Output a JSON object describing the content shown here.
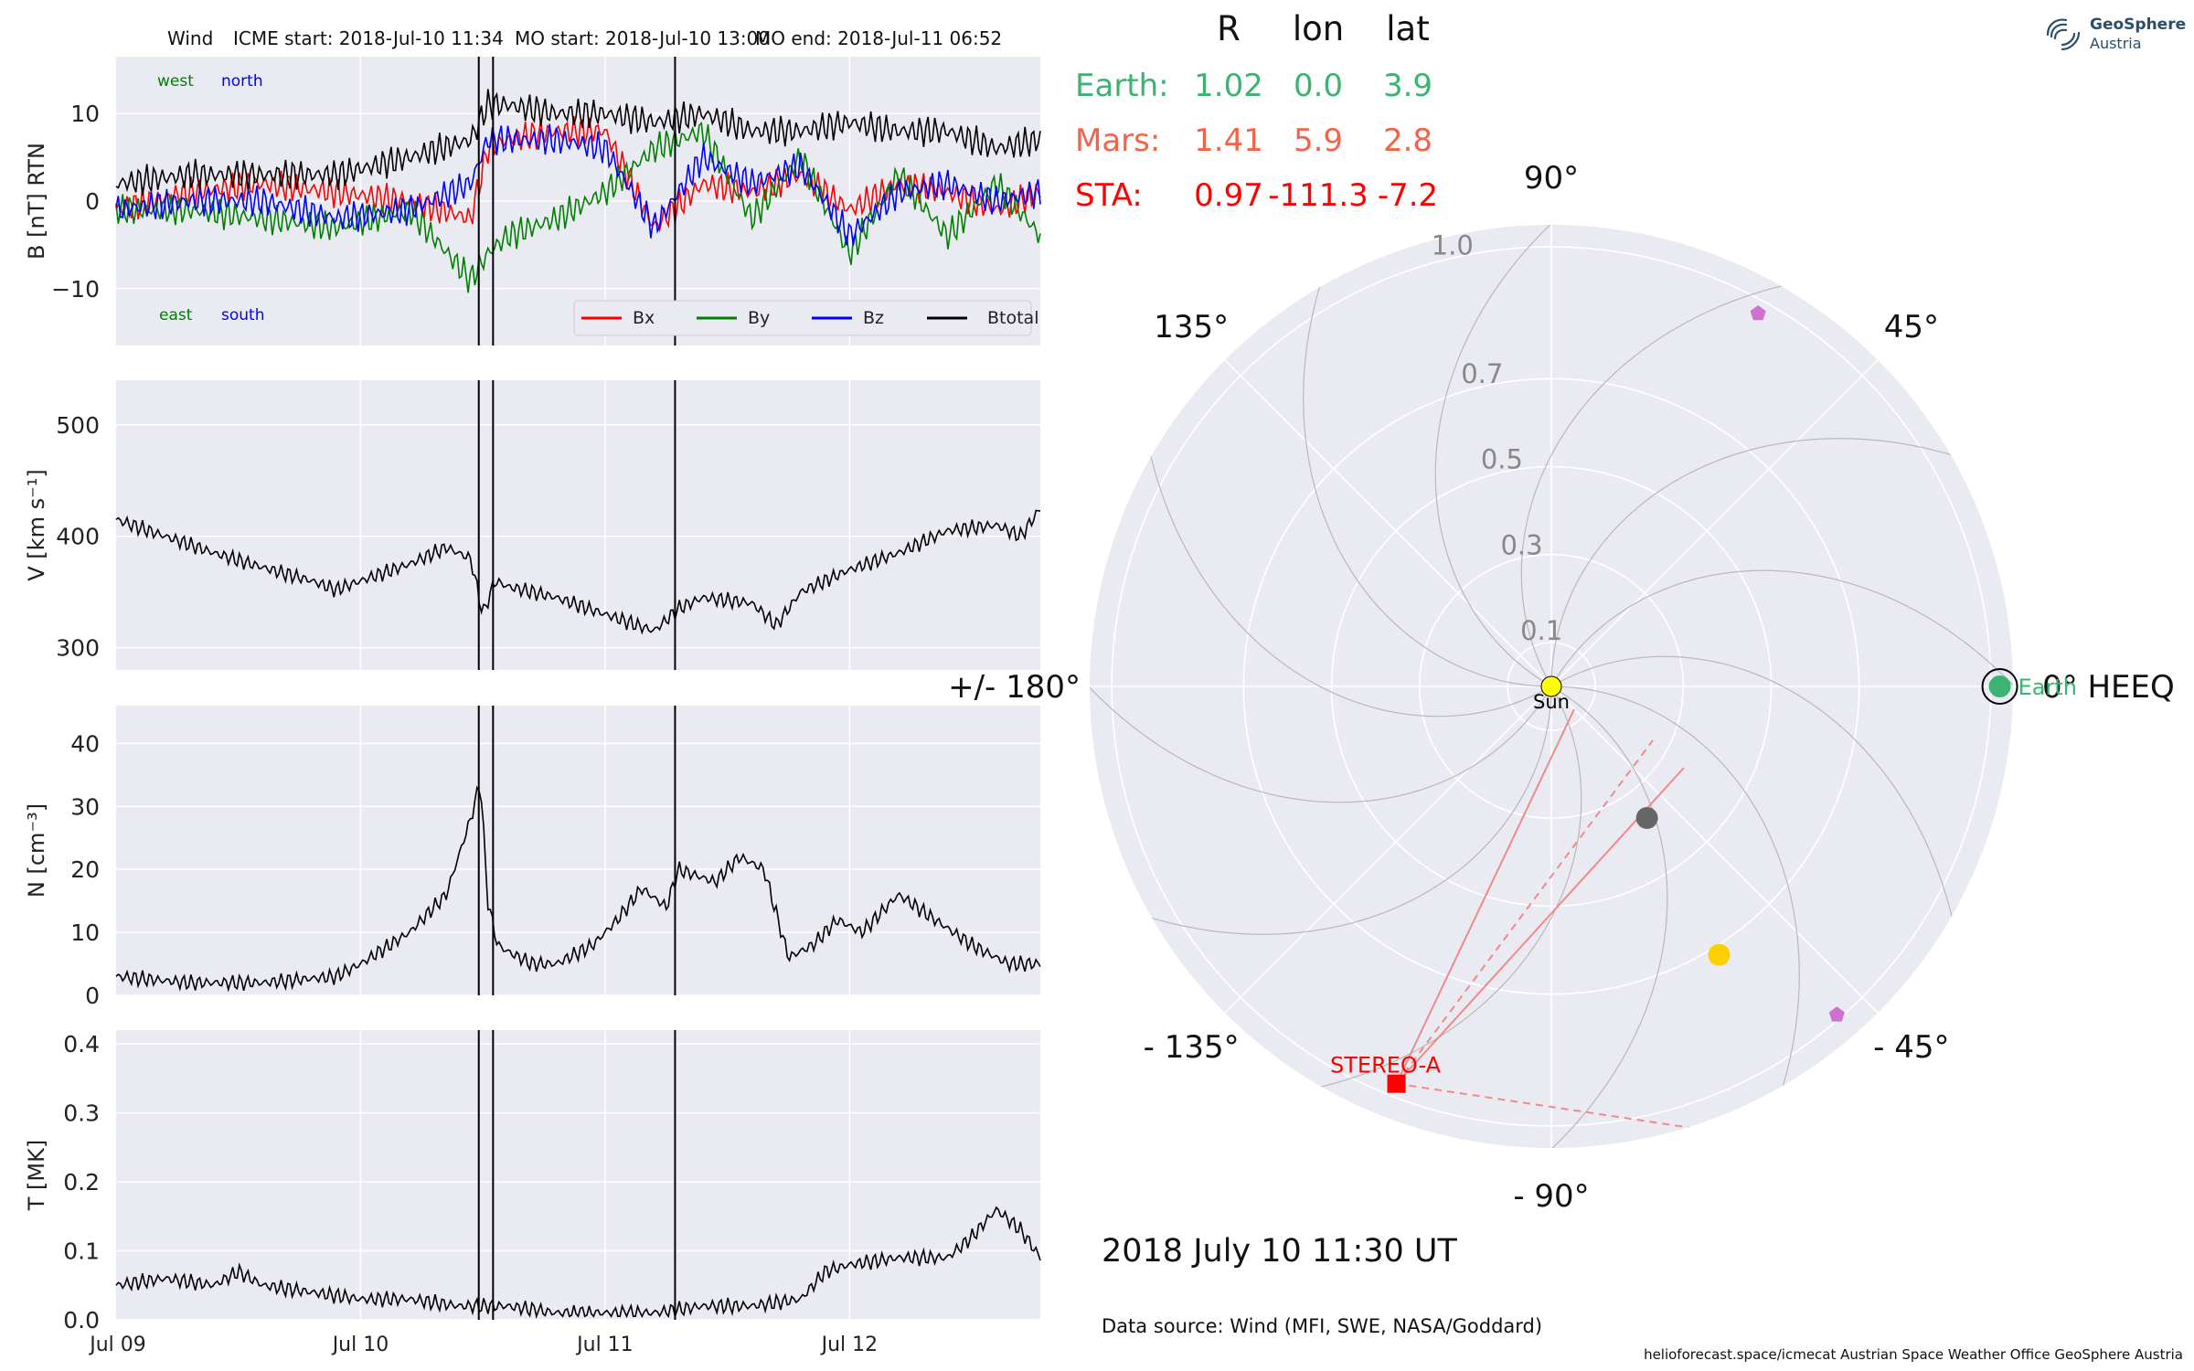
{
  "header": {
    "spacecraft": "Wind",
    "icme_start": "ICME start: 2018-Jul-10 11:34",
    "mo_start": "MO start: 2018-Jul-10 13:00",
    "mo_end": "MO end: 2018-Jul-11 06:52"
  },
  "position_table": {
    "columns": [
      "R",
      "lon",
      "lat"
    ],
    "rows": [
      {
        "name": "Earth:",
        "R": "1.02",
        "lon": "0.0",
        "lat": "3.9",
        "color": "#3cb371"
      },
      {
        "name": "Mars:",
        "R": "1.41",
        "lon": "5.9",
        "lat": "2.8",
        "color": "#f4624a"
      },
      {
        "name": "STA:",
        "R": "0.97",
        "lon": "-111.3",
        "lat": "-7.2",
        "color": "#ff0000"
      }
    ]
  },
  "date_label": "2018 July 10  11:30 UT",
  "data_source": "Data source: Wind (MFI, SWE, NASA/Goddard)",
  "footer": "helioforecast.space/icmecat   Austrian Space Weather Office   GeoSphere Austria",
  "logo": {
    "line1": "GeoSphere",
    "line2": "Austria"
  },
  "colors": {
    "panel_bg": "#eaeaf2",
    "grid": "#ffffff",
    "bx": "#ff0000",
    "by": "#008000",
    "bz": "#0000ff",
    "btotal": "#000000"
  },
  "chart_data": [
    {
      "type": "line",
      "name": "magnetic-field",
      "ylabel": "B [nT] RTN",
      "ylim": [
        -16.5,
        16.5
      ],
      "yticks": [
        10,
        0,
        -10
      ],
      "ytick_labels": [
        "10",
        "0",
        "−10"
      ],
      "xlim": [
        0,
        3.78
      ],
      "corner_labels": {
        "top_left": "west",
        "top_right": "north",
        "bottom_left": "east",
        "bottom_right": "south"
      },
      "legend": [
        "Bx",
        "By",
        "Bz",
        "Btotal"
      ],
      "legend_placement": "lower-right",
      "series": [
        {
          "name": "Bx",
          "x": [
            0,
            0.3,
            0.6,
            0.9,
            1.2,
            1.45,
            1.52,
            1.6,
            1.8,
            2.0,
            2.2,
            2.4,
            2.6,
            2.8,
            3.0,
            3.2,
            3.4,
            3.6,
            3.78
          ],
          "y": [
            -1,
            1,
            2,
            1,
            0,
            -2,
            6,
            7,
            8,
            8,
            -3,
            2,
            1,
            3,
            -1,
            2,
            1,
            -1,
            1
          ]
        },
        {
          "name": "By",
          "x": [
            0,
            0.3,
            0.6,
            0.9,
            1.2,
            1.45,
            1.52,
            1.6,
            1.8,
            2.0,
            2.2,
            2.4,
            2.6,
            2.8,
            3.0,
            3.2,
            3.4,
            3.6,
            3.78
          ],
          "y": [
            -1,
            -1,
            -2,
            -3,
            -1,
            -9,
            -6,
            -4,
            -2,
            1,
            6,
            8,
            -2,
            5,
            -6,
            3,
            -4,
            2,
            -4
          ]
        },
        {
          "name": "Bz",
          "x": [
            0,
            0.3,
            0.6,
            0.9,
            1.2,
            1.45,
            1.52,
            1.6,
            1.8,
            2.0,
            2.2,
            2.4,
            2.6,
            2.8,
            3.0,
            3.2,
            3.4,
            3.6,
            3.78
          ],
          "y": [
            -1,
            0,
            0,
            -2,
            -1,
            2,
            7,
            7,
            7,
            6,
            -3,
            5,
            2,
            4,
            -4,
            1,
            2,
            0,
            1
          ]
        },
        {
          "name": "Btotal",
          "x": [
            0,
            0.3,
            0.6,
            0.9,
            1.2,
            1.45,
            1.52,
            1.6,
            1.8,
            2.0,
            2.2,
            2.4,
            2.6,
            2.8,
            3.0,
            3.2,
            3.4,
            3.6,
            3.78
          ],
          "y": [
            2,
            3,
            3,
            3,
            5,
            7,
            11,
            11,
            10,
            10,
            9,
            10,
            8,
            8,
            9,
            8,
            8,
            6,
            7
          ]
        }
      ]
    },
    {
      "type": "line",
      "name": "speed",
      "ylabel": "V [km s⁻¹]",
      "ylim": [
        280,
        540
      ],
      "yticks": [
        500,
        400,
        300
      ],
      "ytick_labels": [
        "500",
        "400",
        "300"
      ],
      "xlim": [
        0,
        3.78
      ],
      "series": [
        {
          "name": "V",
          "x": [
            0,
            0.2,
            0.4,
            0.6,
            0.8,
            0.9,
            1.0,
            1.2,
            1.35,
            1.45,
            1.5,
            1.55,
            1.6,
            1.8,
            2.0,
            2.2,
            2.3,
            2.4,
            2.6,
            2.7,
            2.8,
            3.0,
            3.2,
            3.4,
            3.6,
            3.7,
            3.78
          ],
          "y": [
            415,
            400,
            385,
            372,
            360,
            352,
            360,
            375,
            390,
            380,
            330,
            360,
            355,
            345,
            330,
            315,
            335,
            345,
            340,
            320,
            350,
            370,
            385,
            405,
            410,
            400,
            425
          ]
        }
      ]
    },
    {
      "type": "line",
      "name": "density",
      "ylabel": "N [cm⁻³]",
      "ylim": [
        0,
        46
      ],
      "yticks": [
        40,
        30,
        20,
        10,
        0
      ],
      "ytick_labels": [
        "40",
        "30",
        "20",
        "10",
        "0"
      ],
      "xlim": [
        0,
        3.78
      ],
      "series": [
        {
          "name": "N",
          "x": [
            0,
            0.3,
            0.6,
            0.9,
            1.0,
            1.2,
            1.35,
            1.45,
            1.49,
            1.52,
            1.56,
            1.6,
            1.7,
            1.8,
            1.95,
            2.05,
            2.15,
            2.25,
            2.3,
            2.45,
            2.55,
            2.65,
            2.75,
            2.85,
            2.95,
            3.05,
            3.2,
            3.35,
            3.5,
            3.65,
            3.78
          ],
          "y": [
            3,
            2,
            2,
            3,
            5,
            10,
            16,
            28,
            34,
            15,
            8,
            7,
            5,
            5,
            8,
            12,
            17,
            14,
            20,
            18,
            22,
            20,
            6,
            8,
            12,
            10,
            16,
            12,
            8,
            5,
            5
          ]
        }
      ]
    },
    {
      "type": "line",
      "name": "temperature",
      "ylabel": "T [MK]",
      "ylim": [
        0,
        0.42
      ],
      "yticks": [
        0.4,
        0.3,
        0.2,
        0.1,
        0.0
      ],
      "ytick_labels": [
        "0.4",
        "0.3",
        "0.2",
        "0.1",
        "0.0"
      ],
      "xlim": [
        0,
        3.78
      ],
      "xticks": [
        0,
        1,
        2,
        3
      ],
      "xtick_labels": [
        "Jul 09",
        "Jul 10",
        "Jul 11",
        "Jul 12"
      ],
      "series": [
        {
          "name": "T",
          "x": [
            0,
            0.2,
            0.4,
            0.5,
            0.6,
            0.8,
            1.0,
            1.2,
            1.4,
            1.5,
            1.6,
            1.8,
            2.0,
            2.2,
            2.4,
            2.6,
            2.8,
            2.9,
            3.0,
            3.2,
            3.4,
            3.5,
            3.6,
            3.7,
            3.78
          ],
          "y": [
            0.05,
            0.06,
            0.05,
            0.07,
            0.05,
            0.04,
            0.03,
            0.03,
            0.02,
            0.02,
            0.02,
            0.01,
            0.01,
            0.01,
            0.02,
            0.02,
            0.03,
            0.07,
            0.08,
            0.09,
            0.09,
            0.12,
            0.16,
            0.13,
            0.09
          ]
        }
      ]
    },
    {
      "type": "scatter",
      "name": "heliosphere-polar-plot",
      "projection": "polar",
      "rlim": [
        0,
        1.05
      ],
      "radial_labels": [
        "0.1",
        "0.3",
        "0.5",
        "0.7",
        "1.0"
      ],
      "radial_values": [
        0.1,
        0.3,
        0.5,
        0.7,
        1.0
      ],
      "angle_labels": [
        {
          "angle": 0,
          "label": "0° HEEQ"
        },
        {
          "angle": 45,
          "label": "45°"
        },
        {
          "angle": 90,
          "label": "90°"
        },
        {
          "angle": 135,
          "label": "135°"
        },
        {
          "angle": 180,
          "label": "+/- 180°"
        },
        {
          "angle": -135,
          "label": "- 135°"
        },
        {
          "angle": -90,
          "label": "- 90°"
        },
        {
          "angle": -45,
          "label": "- 45°"
        }
      ],
      "bodies": [
        {
          "name": "Sun",
          "label": "Sun",
          "r": 0.0,
          "lon": 0,
          "color": "#ffff00",
          "marker": "circle"
        },
        {
          "name": "Earth",
          "label": "Earth",
          "r": 1.02,
          "lon": 0.0,
          "color": "#3cb371",
          "marker": "circle-ring"
        },
        {
          "name": "STEREO-A",
          "label": "STEREO-A",
          "r": 0.97,
          "lon": -111.3,
          "color": "#ff0000",
          "marker": "square"
        },
        {
          "name": "planet-grey",
          "label": "",
          "r": 0.37,
          "lon": -54,
          "color": "#666666",
          "marker": "circle"
        },
        {
          "name": "planet-yellow",
          "label": "",
          "r": 0.72,
          "lon": -58,
          "color": "#ffd000",
          "marker": "circle"
        },
        {
          "name": "probe-upper",
          "label": "",
          "r": 0.97,
          "lon": 61,
          "color": "#d070d0",
          "marker": "pentagon"
        },
        {
          "name": "probe-lower",
          "label": "",
          "r": 0.99,
          "lon": -49,
          "color": "#d070d0",
          "marker": "pentagon"
        }
      ],
      "spiral_lines": 12,
      "fov_lines_from": "STEREO-A"
    }
  ]
}
